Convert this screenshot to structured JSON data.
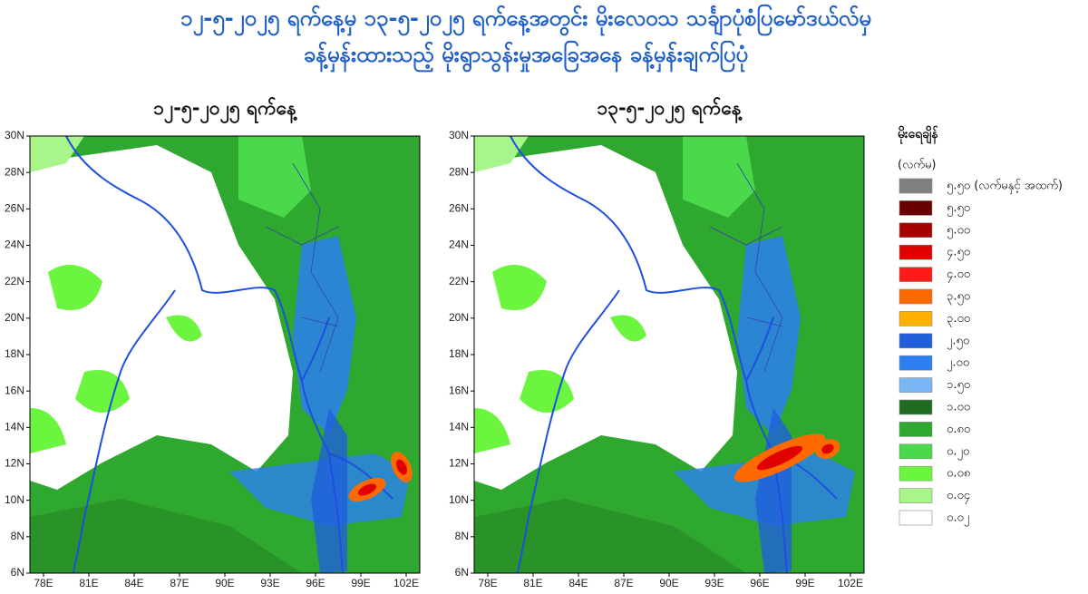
{
  "header": {
    "title_lines": [
      "၁၂-၅-၂၀၂၅ ရက်နေ့မှ ၁၃-၅-၂၀၂၅ ရက်နေ့အတွင်း မိုးလေဝသ သင်္ချာပုံစံပြမော်ဒယ်လ်မှ",
      "ခန့်မှန်းထားသည့် မိုးရွာသွန်းမှုအခြေအနေ ခန့်မှန်းချက်ပြပုံ"
    ]
  },
  "panels": [
    {
      "title": "၁၂-၅-၂၀၂၅ ရက်နေ့"
    },
    {
      "title": "၁၃-၅-၂၀၂၅ ရက်နေ့"
    }
  ],
  "axes": {
    "yticks": [
      "30N",
      "28N",
      "26N",
      "24N",
      "22N",
      "20N",
      "18N",
      "16N",
      "14N",
      "12N",
      "10N",
      "8N",
      "6N"
    ],
    "xticks": [
      "78E",
      "81E",
      "84E",
      "87E",
      "90E",
      "93E",
      "96E",
      "99E",
      "102E"
    ]
  },
  "legend": {
    "title": "မိုးရေချိန်",
    "unit": "(လက်မ)",
    "items": [
      {
        "label": "၅.၅၀ (လက်မနှင့် အထက်)",
        "color": "#808080"
      },
      {
        "label": "၅.၅၀",
        "color": "#6b0000"
      },
      {
        "label": "၅.၀၀",
        "color": "#a80000"
      },
      {
        "label": "၄.၅၀",
        "color": "#e00000"
      },
      {
        "label": "၄.၀၀",
        "color": "#ff1a1a"
      },
      {
        "label": "၃.၅၀",
        "color": "#ff6a00"
      },
      {
        "label": "၃.၀၀",
        "color": "#ffb000"
      },
      {
        "label": "၂.၅၀",
        "color": "#1f5fdc"
      },
      {
        "label": "၂.၀၀",
        "color": "#2b7ff0"
      },
      {
        "label": "၁.၅၀",
        "color": "#7ab6f5"
      },
      {
        "label": "၁.၀၀",
        "color": "#1f6b1f"
      },
      {
        "label": "၀.၈၀",
        "color": "#2fa82f"
      },
      {
        "label": "၀.၂၀",
        "color": "#4ad94a"
      },
      {
        "label": "၀.၀၈",
        "color": "#6bf53e"
      },
      {
        "label": "၀.၀၄",
        "color": "#a8f58a"
      },
      {
        "label": "၀.၀၂",
        "color": "#ffffff"
      }
    ]
  }
}
